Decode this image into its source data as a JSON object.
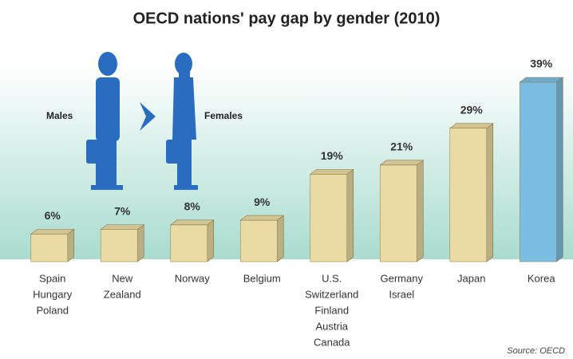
{
  "chart_data": {
    "type": "bar3d",
    "title": "OECD nations' pay gap by gender (2010)",
    "categories": [
      [
        "Spain",
        "Hungary",
        "Poland"
      ],
      [
        "New",
        "Zealand"
      ],
      [
        "Norway"
      ],
      [
        "Belgium"
      ],
      [
        "U.S.",
        "Switzerland",
        "Finland",
        "Austria",
        "Canada"
      ],
      [
        "Germany",
        "Israel"
      ],
      [
        "Japan"
      ],
      [
        "Korea"
      ]
    ],
    "values": [
      6,
      7,
      8,
      9,
      19,
      21,
      29,
      39
    ],
    "value_labels": [
      "6%",
      "7%",
      "8%",
      "9%",
      "19%",
      "21%",
      "29%",
      "39%"
    ],
    "colors": [
      "#e9dba3",
      "#e9dba3",
      "#e9dba3",
      "#e9dba3",
      "#e9dba3",
      "#e9dba3",
      "#e9dba3",
      "#7cbde3"
    ],
    "annotations": {
      "left": "Males",
      "right": "Females",
      "source": "Source: OECD"
    }
  }
}
